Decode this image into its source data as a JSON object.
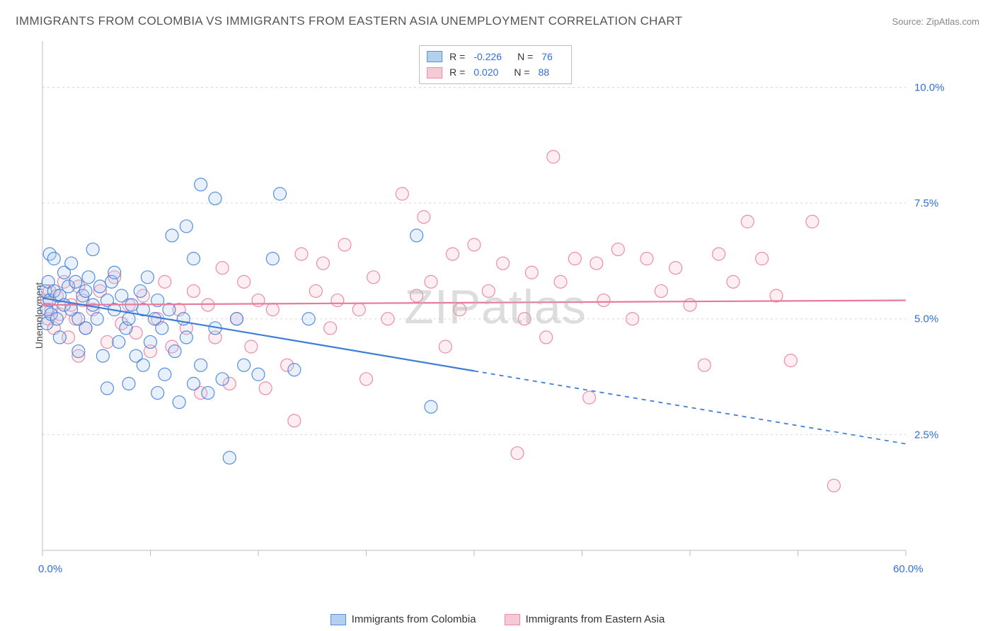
{
  "header": {
    "title": "IMMIGRANTS FROM COLOMBIA VS IMMIGRANTS FROM EASTERN ASIA UNEMPLOYMENT CORRELATION CHART",
    "source": "Source: ZipAtlas.com"
  },
  "watermark": {
    "zip": "ZIP",
    "atlas": "atlas"
  },
  "chart": {
    "y_axis_label": "Unemployment",
    "xlim": [
      0,
      60
    ],
    "ylim": [
      0,
      11
    ],
    "x_axis_min_label": "0.0%",
    "x_axis_max_label": "60.0%",
    "y_ticks": [
      {
        "v": 2.5,
        "label": "2.5%"
      },
      {
        "v": 5.0,
        "label": "5.0%"
      },
      {
        "v": 7.5,
        "label": "7.5%"
      },
      {
        "v": 10.0,
        "label": "10.0%"
      }
    ],
    "x_tick_positions": [
      0,
      7.5,
      15,
      22.5,
      30,
      37.5,
      45,
      52.5,
      60
    ],
    "grid_color": "#d8d8d8",
    "axis_color": "#bcbcbc",
    "background_color": "#ffffff",
    "marker_radius": 9,
    "marker_stroke_width": 1.2,
    "marker_fill_opacity": 0.28,
    "line_width": 2.2
  },
  "legend_stats": [
    {
      "series": "colombia",
      "r_label": "R =",
      "r": "-0.226",
      "n_label": "N =",
      "n": "76"
    },
    {
      "series": "eastern_asia",
      "r_label": "R =",
      "r": "0.020",
      "n_label": "N =",
      "n": "88"
    }
  ],
  "series": {
    "colombia": {
      "label": "Immigrants from Colombia",
      "color": "#3b7dd8",
      "fill": "#a8c8ef",
      "trend": {
        "y_start": 5.45,
        "y_end": 2.3,
        "x_solid_end": 30
      },
      "points": [
        [
          0.2,
          5.6
        ],
        [
          0.3,
          5.2
        ],
        [
          0.3,
          4.9
        ],
        [
          0.4,
          5.8
        ],
        [
          0.5,
          5.4
        ],
        [
          0.5,
          6.4
        ],
        [
          0.6,
          5.1
        ],
        [
          0.8,
          5.6
        ],
        [
          0.8,
          6.3
        ],
        [
          1.0,
          5.0
        ],
        [
          1.2,
          5.5
        ],
        [
          1.2,
          4.6
        ],
        [
          1.5,
          5.3
        ],
        [
          1.5,
          6.0
        ],
        [
          1.8,
          5.7
        ],
        [
          2.0,
          5.2
        ],
        [
          2.0,
          6.2
        ],
        [
          2.3,
          5.8
        ],
        [
          2.5,
          5.0
        ],
        [
          2.5,
          4.3
        ],
        [
          2.8,
          5.5
        ],
        [
          3.0,
          5.6
        ],
        [
          3.0,
          4.8
        ],
        [
          3.2,
          5.9
        ],
        [
          3.5,
          5.3
        ],
        [
          3.5,
          6.5
        ],
        [
          3.8,
          5.0
        ],
        [
          4.0,
          5.7
        ],
        [
          4.2,
          4.2
        ],
        [
          4.5,
          5.4
        ],
        [
          4.5,
          3.5
        ],
        [
          4.8,
          5.8
        ],
        [
          5.0,
          5.2
        ],
        [
          5.0,
          6.0
        ],
        [
          5.3,
          4.5
        ],
        [
          5.5,
          5.5
        ],
        [
          5.8,
          4.8
        ],
        [
          6.0,
          5.0
        ],
        [
          6.0,
          3.6
        ],
        [
          6.2,
          5.3
        ],
        [
          6.5,
          4.2
        ],
        [
          6.8,
          5.6
        ],
        [
          7.0,
          4.0
        ],
        [
          7.0,
          5.2
        ],
        [
          7.3,
          5.9
        ],
        [
          7.5,
          4.5
        ],
        [
          7.8,
          5.0
        ],
        [
          8.0,
          3.4
        ],
        [
          8.0,
          5.4
        ],
        [
          8.3,
          4.8
        ],
        [
          8.5,
          3.8
        ],
        [
          8.8,
          5.2
        ],
        [
          9.0,
          6.8
        ],
        [
          9.2,
          4.3
        ],
        [
          9.5,
          3.2
        ],
        [
          9.8,
          5.0
        ],
        [
          10.0,
          4.6
        ],
        [
          10.0,
          7.0
        ],
        [
          10.5,
          3.6
        ],
        [
          10.5,
          6.3
        ],
        [
          11.0,
          4.0
        ],
        [
          11.0,
          7.9
        ],
        [
          11.5,
          3.4
        ],
        [
          12.0,
          4.8
        ],
        [
          12.0,
          7.6
        ],
        [
          12.5,
          3.7
        ],
        [
          13.0,
          2.0
        ],
        [
          13.5,
          5.0
        ],
        [
          14.0,
          4.0
        ],
        [
          15.0,
          3.8
        ],
        [
          16.0,
          6.3
        ],
        [
          16.5,
          7.7
        ],
        [
          17.5,
          3.9
        ],
        [
          18.5,
          5.0
        ],
        [
          26.0,
          6.8
        ],
        [
          27.0,
          3.1
        ]
      ]
    },
    "eastern_asia": {
      "label": "Immigrants from Eastern Asia",
      "color": "#e87a9a",
      "fill": "#f5c1ce",
      "trend": {
        "y_start": 5.3,
        "y_end": 5.4,
        "x_solid_end": 60
      },
      "points": [
        [
          0.3,
          5.4
        ],
        [
          0.4,
          5.0
        ],
        [
          0.5,
          5.6
        ],
        [
          0.6,
          5.2
        ],
        [
          0.8,
          4.8
        ],
        [
          1.0,
          5.5
        ],
        [
          1.2,
          5.1
        ],
        [
          1.5,
          5.8
        ],
        [
          1.8,
          4.6
        ],
        [
          2.0,
          5.3
        ],
        [
          2.3,
          5.0
        ],
        [
          2.5,
          5.7
        ],
        [
          2.5,
          4.2
        ],
        [
          2.8,
          5.4
        ],
        [
          3.0,
          4.8
        ],
        [
          3.5,
          5.2
        ],
        [
          4.0,
          5.6
        ],
        [
          4.5,
          4.5
        ],
        [
          5.0,
          5.9
        ],
        [
          5.5,
          4.9
        ],
        [
          6.0,
          5.3
        ],
        [
          6.5,
          4.7
        ],
        [
          7.0,
          5.5
        ],
        [
          7.5,
          4.3
        ],
        [
          8.0,
          5.0
        ],
        [
          8.5,
          5.8
        ],
        [
          9.0,
          4.4
        ],
        [
          9.5,
          5.2
        ],
        [
          10.0,
          4.8
        ],
        [
          10.5,
          5.6
        ],
        [
          11.0,
          3.4
        ],
        [
          11.5,
          5.3
        ],
        [
          12.0,
          4.6
        ],
        [
          12.5,
          6.1
        ],
        [
          13.0,
          3.6
        ],
        [
          13.5,
          5.0
        ],
        [
          14.0,
          5.8
        ],
        [
          14.5,
          4.4
        ],
        [
          15.0,
          5.4
        ],
        [
          15.5,
          3.5
        ],
        [
          16.0,
          5.2
        ],
        [
          17.0,
          4.0
        ],
        [
          17.5,
          2.8
        ],
        [
          18.0,
          6.4
        ],
        [
          19.0,
          5.6
        ],
        [
          19.5,
          6.2
        ],
        [
          20.0,
          4.8
        ],
        [
          20.5,
          5.4
        ],
        [
          21.0,
          6.6
        ],
        [
          22.0,
          5.2
        ],
        [
          22.5,
          3.7
        ],
        [
          23.0,
          5.9
        ],
        [
          24.0,
          5.0
        ],
        [
          25.0,
          7.7
        ],
        [
          26.0,
          5.5
        ],
        [
          26.5,
          7.2
        ],
        [
          27.0,
          5.8
        ],
        [
          28.0,
          4.4
        ],
        [
          28.5,
          6.4
        ],
        [
          29.0,
          5.2
        ],
        [
          30.0,
          6.6
        ],
        [
          31.0,
          5.6
        ],
        [
          32.0,
          6.2
        ],
        [
          33.0,
          2.1
        ],
        [
          33.5,
          5.0
        ],
        [
          34.0,
          6.0
        ],
        [
          35.0,
          4.6
        ],
        [
          35.5,
          8.5
        ],
        [
          36.0,
          5.8
        ],
        [
          37.0,
          6.3
        ],
        [
          38.0,
          3.3
        ],
        [
          38.5,
          6.2
        ],
        [
          39.0,
          5.4
        ],
        [
          40.0,
          6.5
        ],
        [
          41.0,
          5.0
        ],
        [
          42.0,
          6.3
        ],
        [
          43.0,
          5.6
        ],
        [
          44.0,
          6.1
        ],
        [
          45.0,
          5.3
        ],
        [
          46.0,
          4.0
        ],
        [
          47.0,
          6.4
        ],
        [
          48.0,
          5.8
        ],
        [
          49.0,
          7.1
        ],
        [
          50.0,
          6.3
        ],
        [
          51.0,
          5.5
        ],
        [
          52.0,
          4.1
        ],
        [
          53.5,
          7.1
        ],
        [
          55.0,
          1.4
        ]
      ]
    }
  },
  "bottom_legend": [
    {
      "series": "colombia"
    },
    {
      "series": "eastern_asia"
    }
  ]
}
